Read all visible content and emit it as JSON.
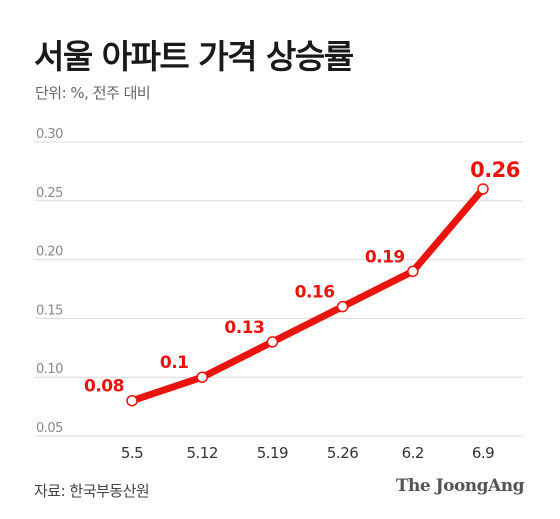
{
  "header": {
    "title": "서울 아파트 가격 상승률",
    "unit": "단위: %, 전주 대비"
  },
  "footer": {
    "source": "자료: 한국부동산원",
    "brand": "The JoongAng"
  },
  "colors": {
    "line": "#e8140d",
    "label": "#e8140d",
    "grid": "#d9d9d9",
    "marker_fill": "#ffffff"
  },
  "chart_data": {
    "type": "line",
    "title": "서울 아파트 가격 상승률",
    "subtitle": "단위: %, 전주 대비",
    "categories": [
      "5.5",
      "5.12",
      "5.19",
      "5.26",
      "6.2",
      "6.9"
    ],
    "values": [
      0.08,
      0.1,
      0.13,
      0.16,
      0.19,
      0.26
    ],
    "value_labels": [
      "0.08",
      "0.1",
      "0.13",
      "0.16",
      "0.19",
      "0.26"
    ],
    "yticks": [
      "0.05",
      "0.10",
      "0.15",
      "0.20",
      "0.25",
      "0.30"
    ],
    "ylim": [
      0.05,
      0.3
    ],
    "grid": true,
    "legend": "none"
  }
}
